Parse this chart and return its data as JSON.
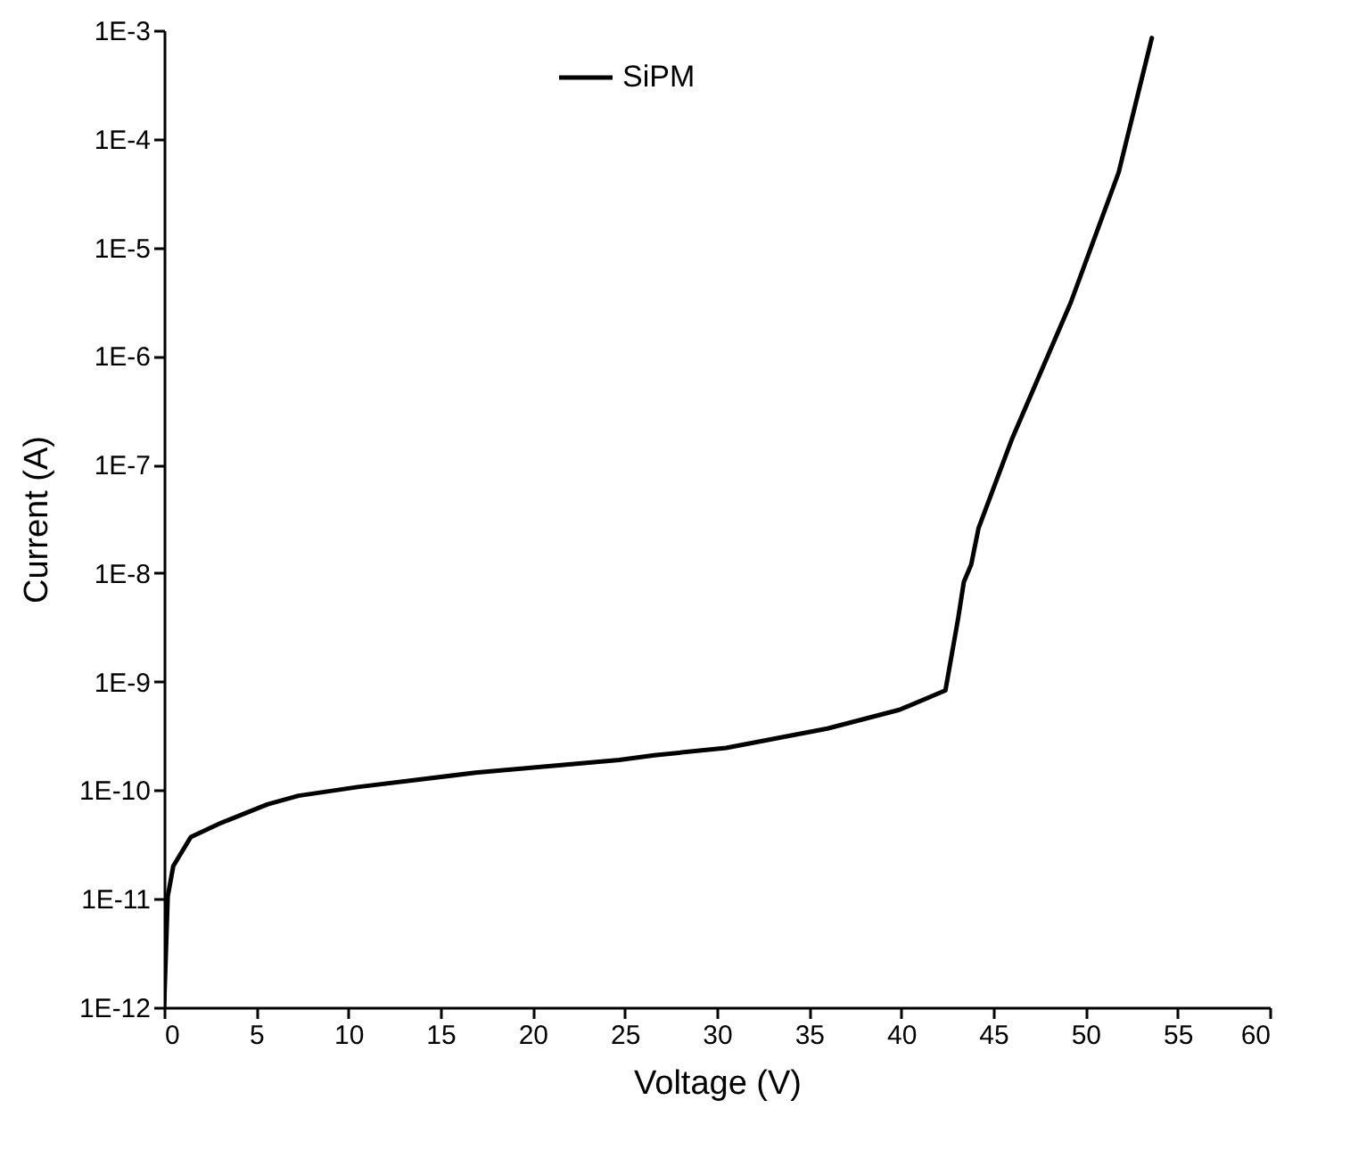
{
  "chart_data": {
    "type": "line",
    "xlabel": "Voltage (V)",
    "ylabel": "Current (A)",
    "log": "y",
    "legend": "top",
    "grid": false,
    "marker": "none",
    "line_style": "solid",
    "xlim": [
      0,
      60
    ],
    "xticks": [
      0,
      5,
      10,
      15,
      20,
      25,
      30,
      35,
      40,
      45,
      50,
      55,
      60
    ],
    "ylim": [
      1e-12,
      0.001
    ],
    "yticks": [
      {
        "value": 1e-12,
        "label": "1E-12"
      },
      {
        "value": 1e-11,
        "label": "1E-11"
      },
      {
        "value": 1e-10,
        "label": "1E-10"
      },
      {
        "value": 1e-09,
        "label": "1E-9"
      },
      {
        "value": 1e-08,
        "label": "1E-8"
      },
      {
        "value": 1e-07,
        "label": "1E-7"
      },
      {
        "value": 1e-06,
        "label": "1E-6"
      },
      {
        "value": 1e-05,
        "label": "1E-5"
      },
      {
        "value": 0.0001,
        "label": "1E-4"
      },
      {
        "value": 0.001,
        "label": "1E-3"
      }
    ],
    "x": [
      0,
      0.2,
      0.5,
      1.45,
      3.1,
      5.6,
      7.3,
      10.5,
      16.9,
      24.7,
      26.6,
      30.5,
      36.0,
      39.9,
      42.4,
      43.1,
      43.4,
      43.8,
      44.2,
      46.0,
      49.2,
      51.8,
      53.6
    ],
    "series": [
      {
        "name": "SiPM",
        "color": "#000000",
        "values": [
          1e-12,
          1.05e-11,
          2e-11,
          3.7e-11,
          5e-11,
          7.4e-11,
          8.9e-11,
          1.07e-10,
          1.45e-10,
          1.9e-10,
          2.1e-10,
          2.45e-10,
          3.7e-10,
          5.5e-10,
          8.3e-10,
          3.9e-09,
          8.3e-09,
          1.2e-08,
          2.6e-08,
          1.7e-07,
          3.1e-06,
          4.9e-05,
          0.00085
        ]
      }
    ]
  }
}
